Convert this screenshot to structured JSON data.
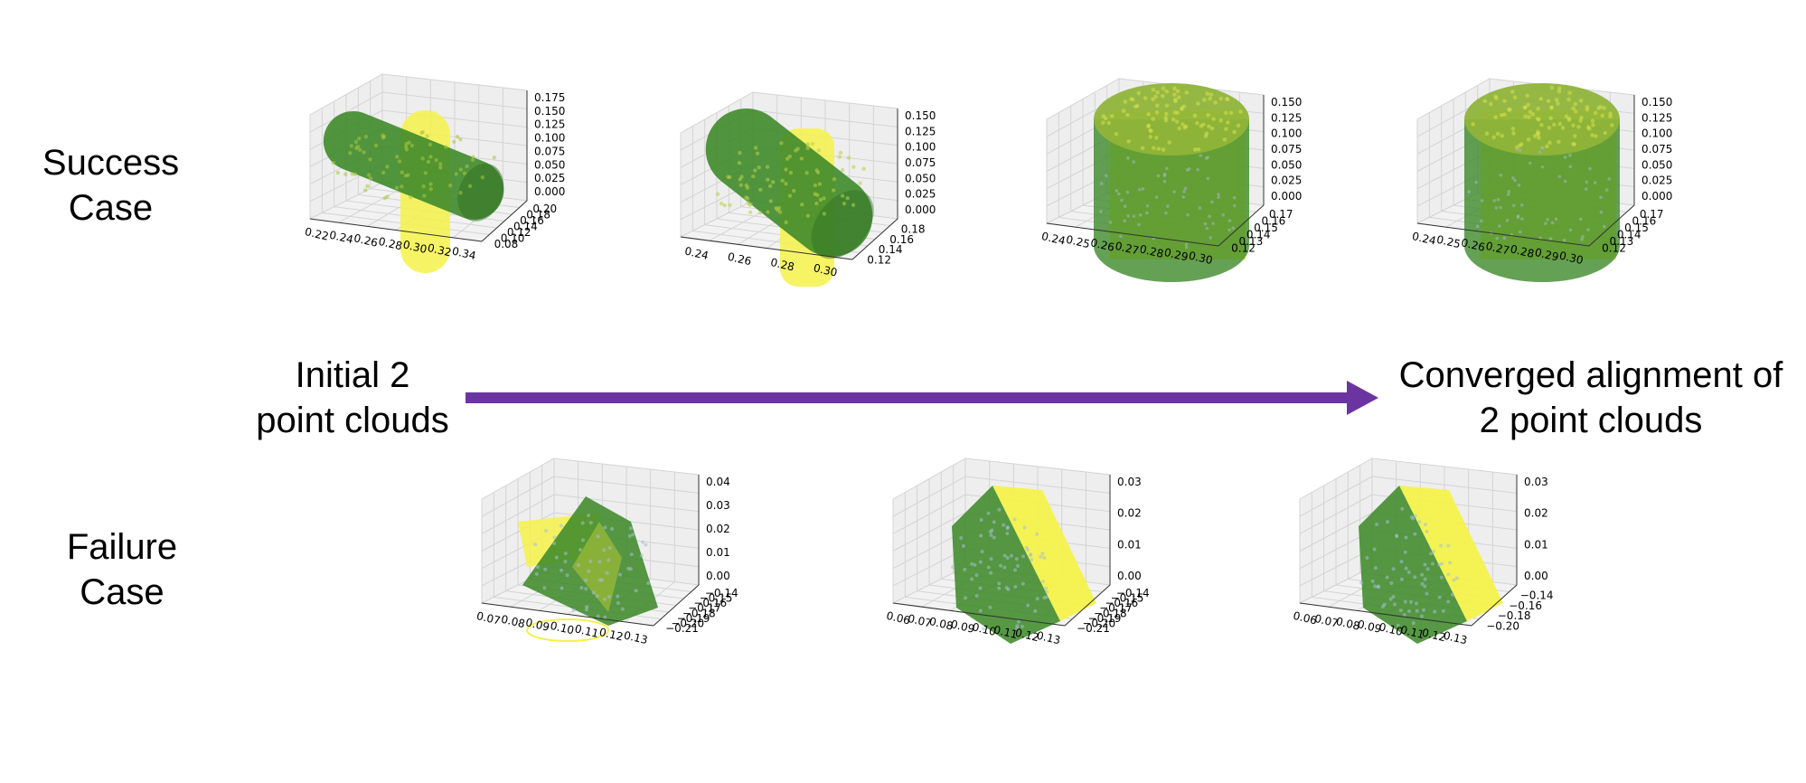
{
  "labels": {
    "success": [
      "Success",
      "Case"
    ],
    "failure": [
      "Failure",
      "Case"
    ],
    "initial": [
      "Initial 2",
      "point clouds"
    ],
    "converged": [
      "Converged alignment of",
      "2 point clouds"
    ]
  },
  "colors": {
    "arrow": "#6B35A1",
    "green_cloud": "#3f8a2a",
    "yellow_cloud": "#f4f24a",
    "pane": "#eeeeee",
    "grid": "#d4d4d4"
  },
  "chart_data": [
    {
      "type": "scatter3d",
      "row": "success",
      "step": 1,
      "shape": "capsule",
      "x_ticks": [
        "0.22",
        "0.24",
        "0.26",
        "0.28",
        "0.30",
        "0.32",
        "0.34"
      ],
      "y_ticks": [
        "0.08",
        "0.10",
        "0.12",
        "0.14",
        "0.16",
        "0.18",
        "0.20"
      ],
      "z_ticks": [
        "0.000",
        "0.025",
        "0.050",
        "0.075",
        "0.100",
        "0.125",
        "0.150",
        "0.175"
      ],
      "grid": true
    },
    {
      "type": "scatter3d",
      "row": "success",
      "step": 2,
      "shape": "capsule-tilted",
      "x_ticks": [
        "0.24",
        "0.26",
        "0.28",
        "0.30"
      ],
      "y_ticks": [
        "0.12",
        "0.14",
        "0.16",
        "0.18"
      ],
      "z_ticks": [
        "0.000",
        "0.025",
        "0.050",
        "0.075",
        "0.100",
        "0.125",
        "0.150"
      ],
      "grid": true
    },
    {
      "type": "scatter3d",
      "row": "success",
      "step": 3,
      "shape": "cylinder",
      "x_ticks": [
        "0.24",
        "0.25",
        "0.26",
        "0.27",
        "0.28",
        "0.29",
        "0.30"
      ],
      "y_ticks": [
        "0.12",
        "0.13",
        "0.14",
        "0.15",
        "0.16",
        "0.17"
      ],
      "z_ticks": [
        "0.000",
        "0.025",
        "0.050",
        "0.075",
        "0.100",
        "0.125",
        "0.150"
      ],
      "grid": true
    },
    {
      "type": "scatter3d",
      "row": "success",
      "step": 4,
      "shape": "cylinder",
      "x_ticks": [
        "0.24",
        "0.25",
        "0.26",
        "0.27",
        "0.28",
        "0.29",
        "0.30"
      ],
      "y_ticks": [
        "0.12",
        "0.13",
        "0.14",
        "0.15",
        "0.16",
        "0.17"
      ],
      "z_ticks": [
        "0.000",
        "0.025",
        "0.050",
        "0.075",
        "0.100",
        "0.125",
        "0.150"
      ],
      "grid": true
    },
    {
      "type": "scatter3d",
      "row": "failure",
      "step": 1,
      "shape": "roof",
      "x_ticks": [
        "0.07",
        "0.08",
        "0.09",
        "0.10",
        "0.11",
        "0.12",
        "0.13"
      ],
      "y_ticks": [
        "−0.21",
        "−0.20",
        "−0.19",
        "−0.18",
        "−0.17",
        "−0.16",
        "−0.15",
        "−0.14"
      ],
      "z_ticks": [
        "0.00",
        "0.01",
        "0.02",
        "0.03",
        "0.04"
      ],
      "grid": true
    },
    {
      "type": "scatter3d",
      "row": "failure",
      "step": 2,
      "shape": "prism",
      "x_ticks": [
        "0.06",
        "0.07",
        "0.08",
        "0.09",
        "0.10",
        "0.11",
        "0.12",
        "0.13"
      ],
      "y_ticks": [
        "−0.21",
        "−0.20",
        "−0.19",
        "−0.18",
        "−0.17",
        "−0.16",
        "−0.15",
        "−0.14"
      ],
      "z_ticks": [
        "0.00",
        "0.01",
        "0.02",
        "0.03"
      ],
      "grid": true
    },
    {
      "type": "scatter3d",
      "row": "failure",
      "step": 3,
      "shape": "prism",
      "x_ticks": [
        "0.06",
        "0.07",
        "0.08",
        "0.09",
        "0.10",
        "0.11",
        "0.12",
        "0.13"
      ],
      "y_ticks": [
        "−0.20",
        "−0.18",
        "−0.16",
        "−0.14"
      ],
      "z_ticks": [
        "0.00",
        "0.01",
        "0.02",
        "0.03"
      ],
      "grid": true
    }
  ]
}
